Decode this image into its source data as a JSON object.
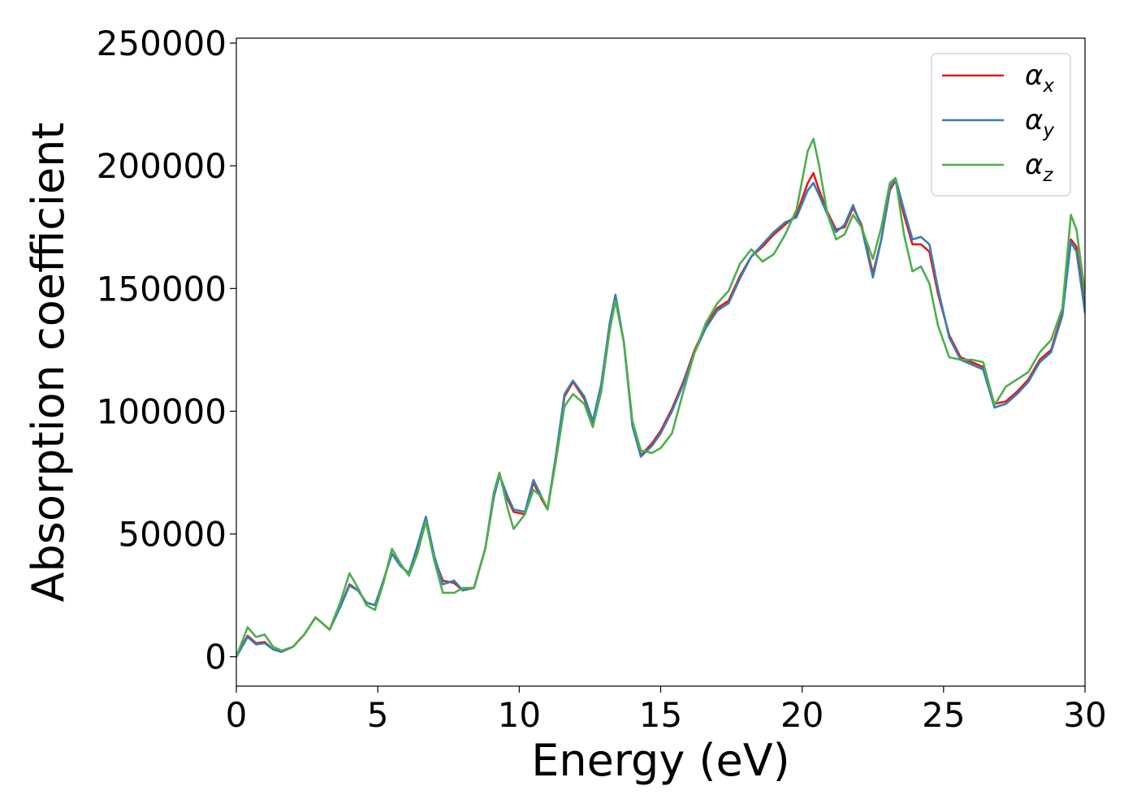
{
  "chart_data": {
    "type": "line",
    "xlabel": "Energy (eV)",
    "ylabel": "Absorption coefficient",
    "xlim": [
      0,
      30
    ],
    "ylim": [
      -12000,
      252000
    ],
    "xticks": [
      0,
      5,
      10,
      15,
      20,
      25,
      30
    ],
    "xtick_labels": [
      "0",
      "5",
      "10",
      "15",
      "20",
      "25",
      "30"
    ],
    "yticks": [
      0,
      50000,
      100000,
      150000,
      200000,
      250000
    ],
    "ytick_labels": [
      "0",
      "50000",
      "100000",
      "150000",
      "200000",
      "250000"
    ],
    "grid": false,
    "legend_position": "top-right",
    "series": [
      {
        "name": "α_x",
        "base": "α",
        "sub": "x",
        "color": "#e41a1c",
        "points": [
          [
            0,
            0
          ],
          [
            0.4,
            8500
          ],
          [
            0.7,
            5500
          ],
          [
            1.0,
            6000
          ],
          [
            1.3,
            3000
          ],
          [
            1.6,
            2000
          ],
          [
            2.0,
            4000
          ],
          [
            2.4,
            9000
          ],
          [
            2.8,
            16000
          ],
          [
            3.1,
            13000
          ],
          [
            3.3,
            11000
          ],
          [
            3.7,
            21000
          ],
          [
            4.0,
            29500
          ],
          [
            4.3,
            27000
          ],
          [
            4.6,
            22000
          ],
          [
            4.9,
            21000
          ],
          [
            5.2,
            31000
          ],
          [
            5.5,
            42000
          ],
          [
            5.8,
            37000
          ],
          [
            6.1,
            34000
          ],
          [
            6.4,
            44000
          ],
          [
            6.7,
            56000
          ],
          [
            7.0,
            40000
          ],
          [
            7.3,
            31000
          ],
          [
            7.7,
            30000
          ],
          [
            8.0,
            27000
          ],
          [
            8.4,
            28000
          ],
          [
            8.8,
            44000
          ],
          [
            9.1,
            65000
          ],
          [
            9.3,
            74000
          ],
          [
            9.6,
            64000
          ],
          [
            9.8,
            59000
          ],
          [
            10.2,
            58000
          ],
          [
            10.5,
            71000
          ],
          [
            10.8,
            64000
          ],
          [
            11.0,
            60000
          ],
          [
            11.3,
            82000
          ],
          [
            11.6,
            106000
          ],
          [
            11.9,
            112000
          ],
          [
            12.3,
            105000
          ],
          [
            12.6,
            95000
          ],
          [
            12.9,
            110000
          ],
          [
            13.2,
            135000
          ],
          [
            13.4,
            147000
          ],
          [
            13.7,
            128000
          ],
          [
            14.0,
            95000
          ],
          [
            14.3,
            82000
          ],
          [
            14.7,
            87000
          ],
          [
            15.0,
            92000
          ],
          [
            15.4,
            101000
          ],
          [
            15.8,
            112000
          ],
          [
            16.2,
            125000
          ],
          [
            16.6,
            135000
          ],
          [
            17.0,
            142000
          ],
          [
            17.4,
            145000
          ],
          [
            17.8,
            155000
          ],
          [
            18.2,
            163000
          ],
          [
            18.6,
            167000
          ],
          [
            19.0,
            172000
          ],
          [
            19.4,
            176000
          ],
          [
            19.8,
            180000
          ],
          [
            20.2,
            193000
          ],
          [
            20.4,
            197000
          ],
          [
            20.6,
            190000
          ],
          [
            20.9,
            181000
          ],
          [
            21.2,
            174000
          ],
          [
            21.5,
            175000
          ],
          [
            21.8,
            183000
          ],
          [
            22.1,
            176000
          ],
          [
            22.5,
            156000
          ],
          [
            22.8,
            170000
          ],
          [
            23.1,
            190000
          ],
          [
            23.3,
            194000
          ],
          [
            23.6,
            180000
          ],
          [
            23.9,
            168000
          ],
          [
            24.2,
            168000
          ],
          [
            24.5,
            165000
          ],
          [
            24.8,
            148000
          ],
          [
            25.2,
            131000
          ],
          [
            25.6,
            122000
          ],
          [
            26.0,
            120000
          ],
          [
            26.4,
            118000
          ],
          [
            26.8,
            103000
          ],
          [
            27.2,
            104000
          ],
          [
            27.6,
            108000
          ],
          [
            28.0,
            113000
          ],
          [
            28.4,
            121000
          ],
          [
            28.8,
            125000
          ],
          [
            29.2,
            140000
          ],
          [
            29.5,
            170000
          ],
          [
            29.7,
            167000
          ],
          [
            30.0,
            142000
          ]
        ]
      },
      {
        "name": "α_y",
        "base": "α",
        "sub": "y",
        "color": "#377eb8",
        "points": [
          [
            0,
            0
          ],
          [
            0.4,
            8000
          ],
          [
            0.7,
            5000
          ],
          [
            1.0,
            5500
          ],
          [
            1.3,
            3000
          ],
          [
            1.6,
            2000
          ],
          [
            2.0,
            4000
          ],
          [
            2.4,
            9000
          ],
          [
            2.8,
            16000
          ],
          [
            3.1,
            13000
          ],
          [
            3.3,
            11000
          ],
          [
            3.7,
            21000
          ],
          [
            4.0,
            29000
          ],
          [
            4.3,
            27000
          ],
          [
            4.6,
            22000
          ],
          [
            4.9,
            21000
          ],
          [
            5.2,
            31000
          ],
          [
            5.5,
            42000
          ],
          [
            5.8,
            37000
          ],
          [
            6.1,
            34000
          ],
          [
            6.4,
            45000
          ],
          [
            6.7,
            57000
          ],
          [
            7.0,
            41000
          ],
          [
            7.3,
            29500
          ],
          [
            7.7,
            31000
          ],
          [
            8.0,
            27000
          ],
          [
            8.4,
            28000
          ],
          [
            8.8,
            44000
          ],
          [
            9.1,
            65000
          ],
          [
            9.3,
            74000
          ],
          [
            9.6,
            65000
          ],
          [
            9.8,
            60000
          ],
          [
            10.2,
            59000
          ],
          [
            10.5,
            72000
          ],
          [
            10.8,
            65000
          ],
          [
            11.0,
            60000
          ],
          [
            11.3,
            82000
          ],
          [
            11.6,
            107000
          ],
          [
            11.9,
            112500
          ],
          [
            12.3,
            106000
          ],
          [
            12.6,
            96000
          ],
          [
            12.9,
            111000
          ],
          [
            13.2,
            136000
          ],
          [
            13.4,
            147500
          ],
          [
            13.7,
            128000
          ],
          [
            14.0,
            94000
          ],
          [
            14.3,
            81500
          ],
          [
            14.7,
            86000
          ],
          [
            15.0,
            91000
          ],
          [
            15.4,
            100000
          ],
          [
            15.8,
            111000
          ],
          [
            16.2,
            124000
          ],
          [
            16.6,
            134000
          ],
          [
            17.0,
            141000
          ],
          [
            17.4,
            144000
          ],
          [
            17.8,
            154000
          ],
          [
            18.2,
            163000
          ],
          [
            18.6,
            168000
          ],
          [
            19.0,
            173000
          ],
          [
            19.4,
            177000
          ],
          [
            19.8,
            179000
          ],
          [
            20.2,
            190000
          ],
          [
            20.4,
            193000
          ],
          [
            20.6,
            188000
          ],
          [
            20.9,
            180000
          ],
          [
            21.2,
            173000
          ],
          [
            21.5,
            176000
          ],
          [
            21.8,
            184000
          ],
          [
            22.1,
            175000
          ],
          [
            22.5,
            154500
          ],
          [
            22.8,
            170000
          ],
          [
            23.1,
            191000
          ],
          [
            23.3,
            195000
          ],
          [
            23.6,
            182000
          ],
          [
            23.9,
            170000
          ],
          [
            24.2,
            171000
          ],
          [
            24.5,
            168000
          ],
          [
            24.8,
            150000
          ],
          [
            25.2,
            130000
          ],
          [
            25.6,
            121000
          ],
          [
            26.0,
            119000
          ],
          [
            26.4,
            117000
          ],
          [
            26.8,
            101500
          ],
          [
            27.2,
            103000
          ],
          [
            27.6,
            107000
          ],
          [
            28.0,
            112000
          ],
          [
            28.4,
            120000
          ],
          [
            28.8,
            124000
          ],
          [
            29.2,
            139000
          ],
          [
            29.5,
            169000
          ],
          [
            29.7,
            165000
          ],
          [
            30.0,
            140000
          ]
        ]
      },
      {
        "name": "α_z",
        "base": "α",
        "sub": "z",
        "color": "#4daf4a",
        "points": [
          [
            0,
            0
          ],
          [
            0.4,
            12000
          ],
          [
            0.7,
            8000
          ],
          [
            1.0,
            9000
          ],
          [
            1.3,
            4000
          ],
          [
            1.6,
            2500
          ],
          [
            2.0,
            4000
          ],
          [
            2.4,
            9000
          ],
          [
            2.8,
            16000
          ],
          [
            3.1,
            13000
          ],
          [
            3.3,
            11000
          ],
          [
            3.7,
            23000
          ],
          [
            4.0,
            34000
          ],
          [
            4.3,
            28000
          ],
          [
            4.6,
            21000
          ],
          [
            4.9,
            19000
          ],
          [
            5.2,
            30000
          ],
          [
            5.5,
            44000
          ],
          [
            5.8,
            38000
          ],
          [
            6.1,
            33000
          ],
          [
            6.4,
            42000
          ],
          [
            6.7,
            55000
          ],
          [
            7.0,
            39000
          ],
          [
            7.3,
            26000
          ],
          [
            7.7,
            26000
          ],
          [
            8.0,
            28000
          ],
          [
            8.4,
            28000
          ],
          [
            8.8,
            44000
          ],
          [
            9.1,
            67000
          ],
          [
            9.3,
            75000
          ],
          [
            9.6,
            60000
          ],
          [
            9.8,
            52000
          ],
          [
            10.2,
            58000
          ],
          [
            10.5,
            68000
          ],
          [
            10.8,
            65000
          ],
          [
            11.0,
            60000
          ],
          [
            11.3,
            80000
          ],
          [
            11.6,
            102000
          ],
          [
            11.9,
            107000
          ],
          [
            12.3,
            103000
          ],
          [
            12.6,
            93500
          ],
          [
            12.9,
            108000
          ],
          [
            13.2,
            133000
          ],
          [
            13.4,
            145000
          ],
          [
            13.7,
            128000
          ],
          [
            14.0,
            96000
          ],
          [
            14.3,
            84000
          ],
          [
            14.7,
            83000
          ],
          [
            15.0,
            85000
          ],
          [
            15.4,
            91000
          ],
          [
            15.8,
            108000
          ],
          [
            16.2,
            124000
          ],
          [
            16.6,
            136000
          ],
          [
            17.0,
            144000
          ],
          [
            17.4,
            149000
          ],
          [
            17.8,
            160000
          ],
          [
            18.2,
            166000
          ],
          [
            18.6,
            161000
          ],
          [
            19.0,
            164000
          ],
          [
            19.4,
            172000
          ],
          [
            19.8,
            182000
          ],
          [
            20.2,
            206000
          ],
          [
            20.4,
            211000
          ],
          [
            20.6,
            200000
          ],
          [
            20.9,
            180000
          ],
          [
            21.2,
            170000
          ],
          [
            21.5,
            172000
          ],
          [
            21.8,
            180000
          ],
          [
            22.1,
            175000
          ],
          [
            22.5,
            162000
          ],
          [
            22.8,
            175000
          ],
          [
            23.1,
            193000
          ],
          [
            23.3,
            195000
          ],
          [
            23.6,
            172000
          ],
          [
            23.9,
            157000
          ],
          [
            24.2,
            159000
          ],
          [
            24.5,
            152000
          ],
          [
            24.8,
            135000
          ],
          [
            25.2,
            122000
          ],
          [
            25.6,
            121000
          ],
          [
            26.0,
            121000
          ],
          [
            26.4,
            120000
          ],
          [
            26.8,
            102500
          ],
          [
            27.2,
            110000
          ],
          [
            27.6,
            113000
          ],
          [
            28.0,
            116000
          ],
          [
            28.4,
            124000
          ],
          [
            28.8,
            129000
          ],
          [
            29.2,
            142000
          ],
          [
            29.5,
            180000
          ],
          [
            29.7,
            174000
          ],
          [
            30.0,
            148000
          ]
        ]
      }
    ]
  }
}
